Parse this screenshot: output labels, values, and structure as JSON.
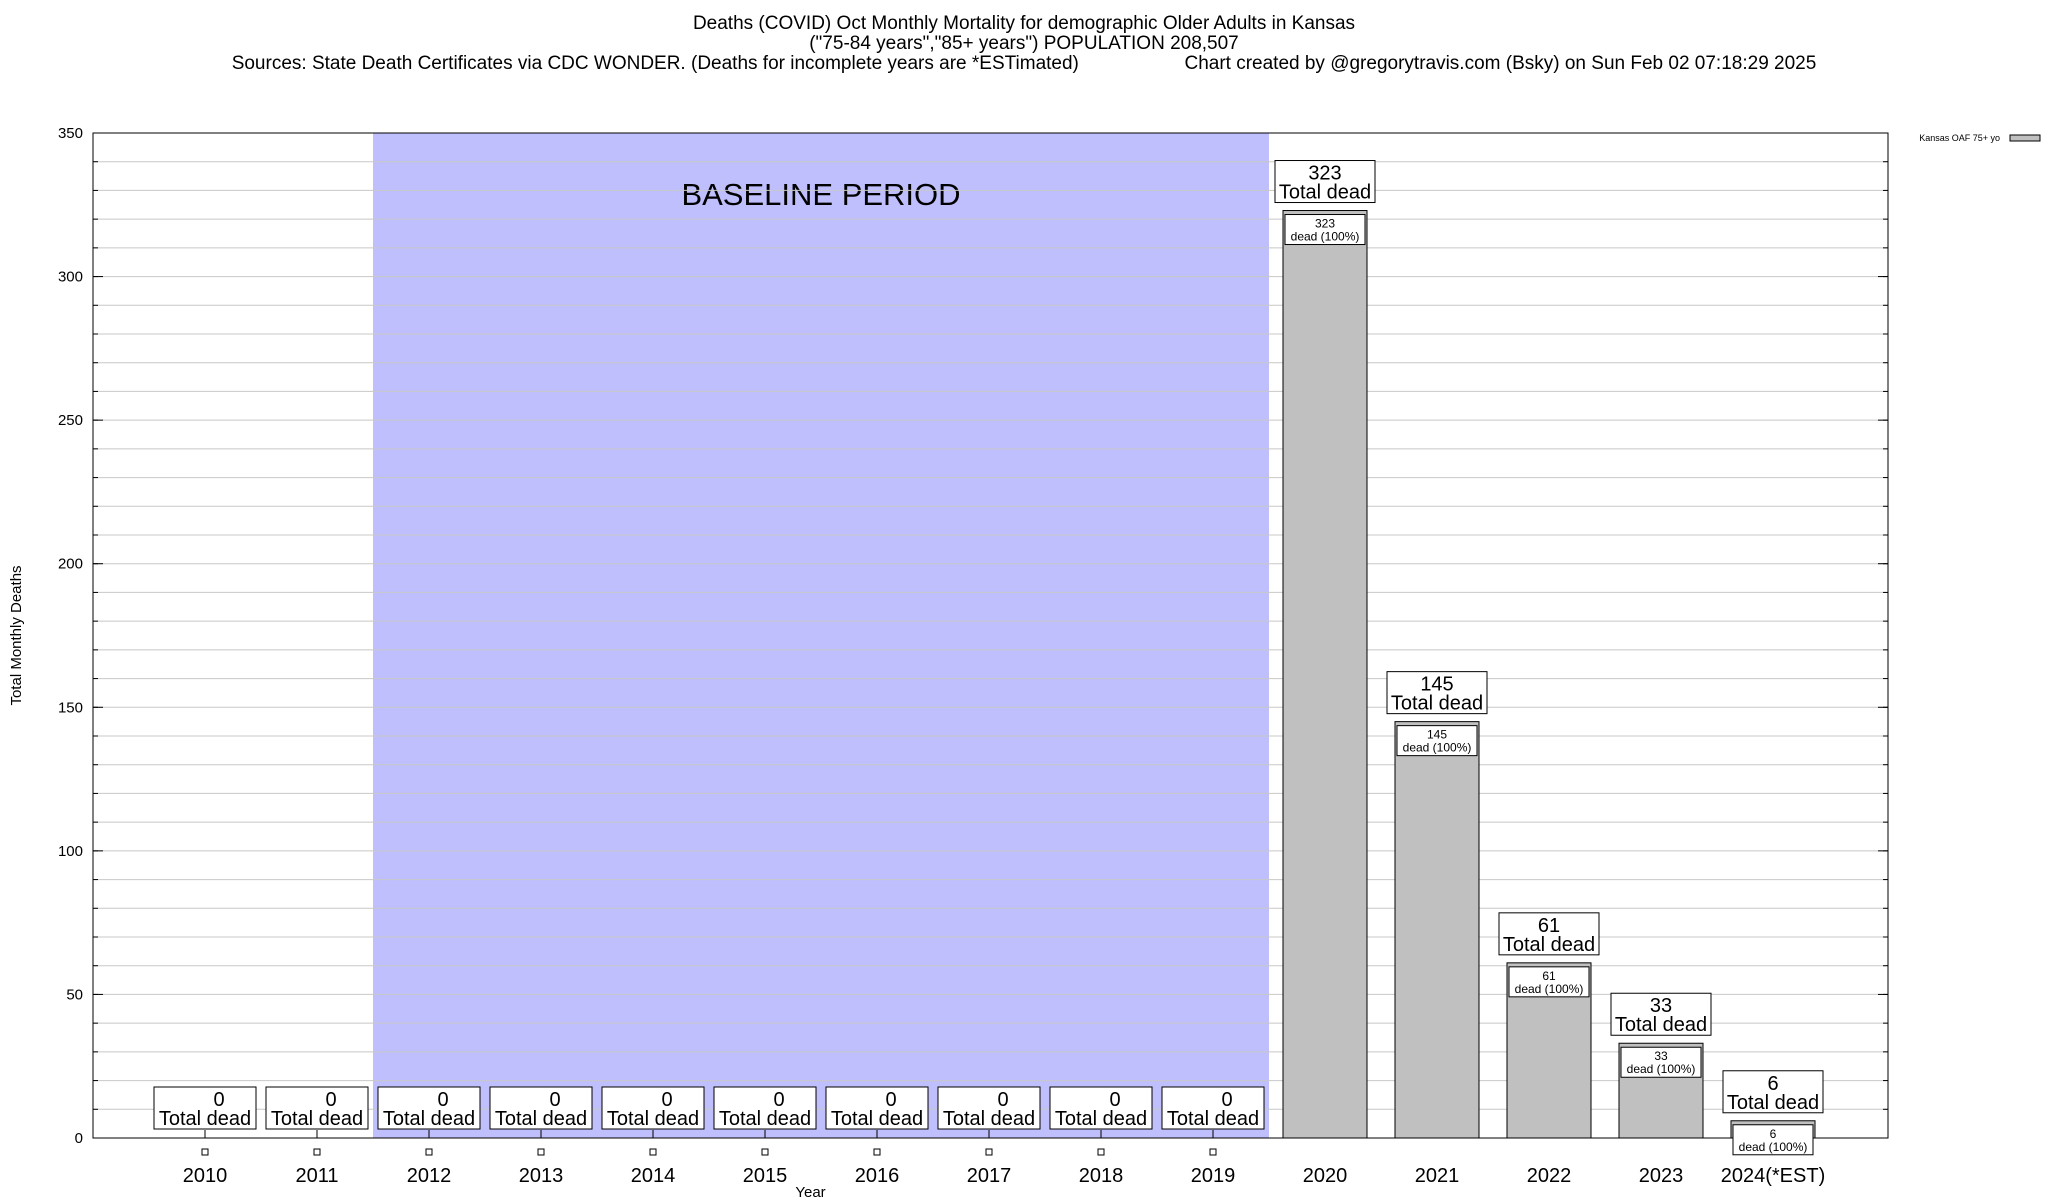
{
  "header": {
    "title": "Deaths (COVID) Oct Monthly Mortality for demographic Older Adults in Kansas",
    "subtitle": "(\"75-84 years\",\"85+ years\") POPULATION 208,507",
    "sources": "Sources: State Death Certificates via CDC WONDER. (Deaths for incomplete years are *ESTimated)",
    "credit": "Chart created by @gregorytravis.com (Bsky) on Sun Feb 02 07:18:29 2025"
  },
  "chart_data": {
    "type": "bar",
    "categories": [
      "2010",
      "2011",
      "2012",
      "2013",
      "2014",
      "2015",
      "2016",
      "2017",
      "2018",
      "2019",
      "2020",
      "2021",
      "2022",
      "2023",
      "2024(*EST)"
    ],
    "series": [
      {
        "name": "Kansas OAF 75+ yo",
        "values": [
          0,
          0,
          0,
          0,
          0,
          0,
          0,
          0,
          0,
          0,
          323,
          145,
          61,
          33,
          6
        ]
      }
    ],
    "total_label_text": "Total dead",
    "inner_label_text": "dead (100%)",
    "xlabel": "Year",
    "ylabel": "Total Monthly Deaths",
    "ylim": [
      0,
      350
    ],
    "yticks": [
      0,
      50,
      100,
      150,
      200,
      250,
      300,
      350
    ],
    "minor_grid_step": 10,
    "grid": true,
    "legend_position": "top-right",
    "baseline_period": {
      "label": "BASELINE PERIOD",
      "from": "2012",
      "to": "2019"
    },
    "colors": {
      "bar": "#c0c0c0",
      "baseline": "#bfbffd",
      "grid": "#c8c8c8"
    }
  }
}
